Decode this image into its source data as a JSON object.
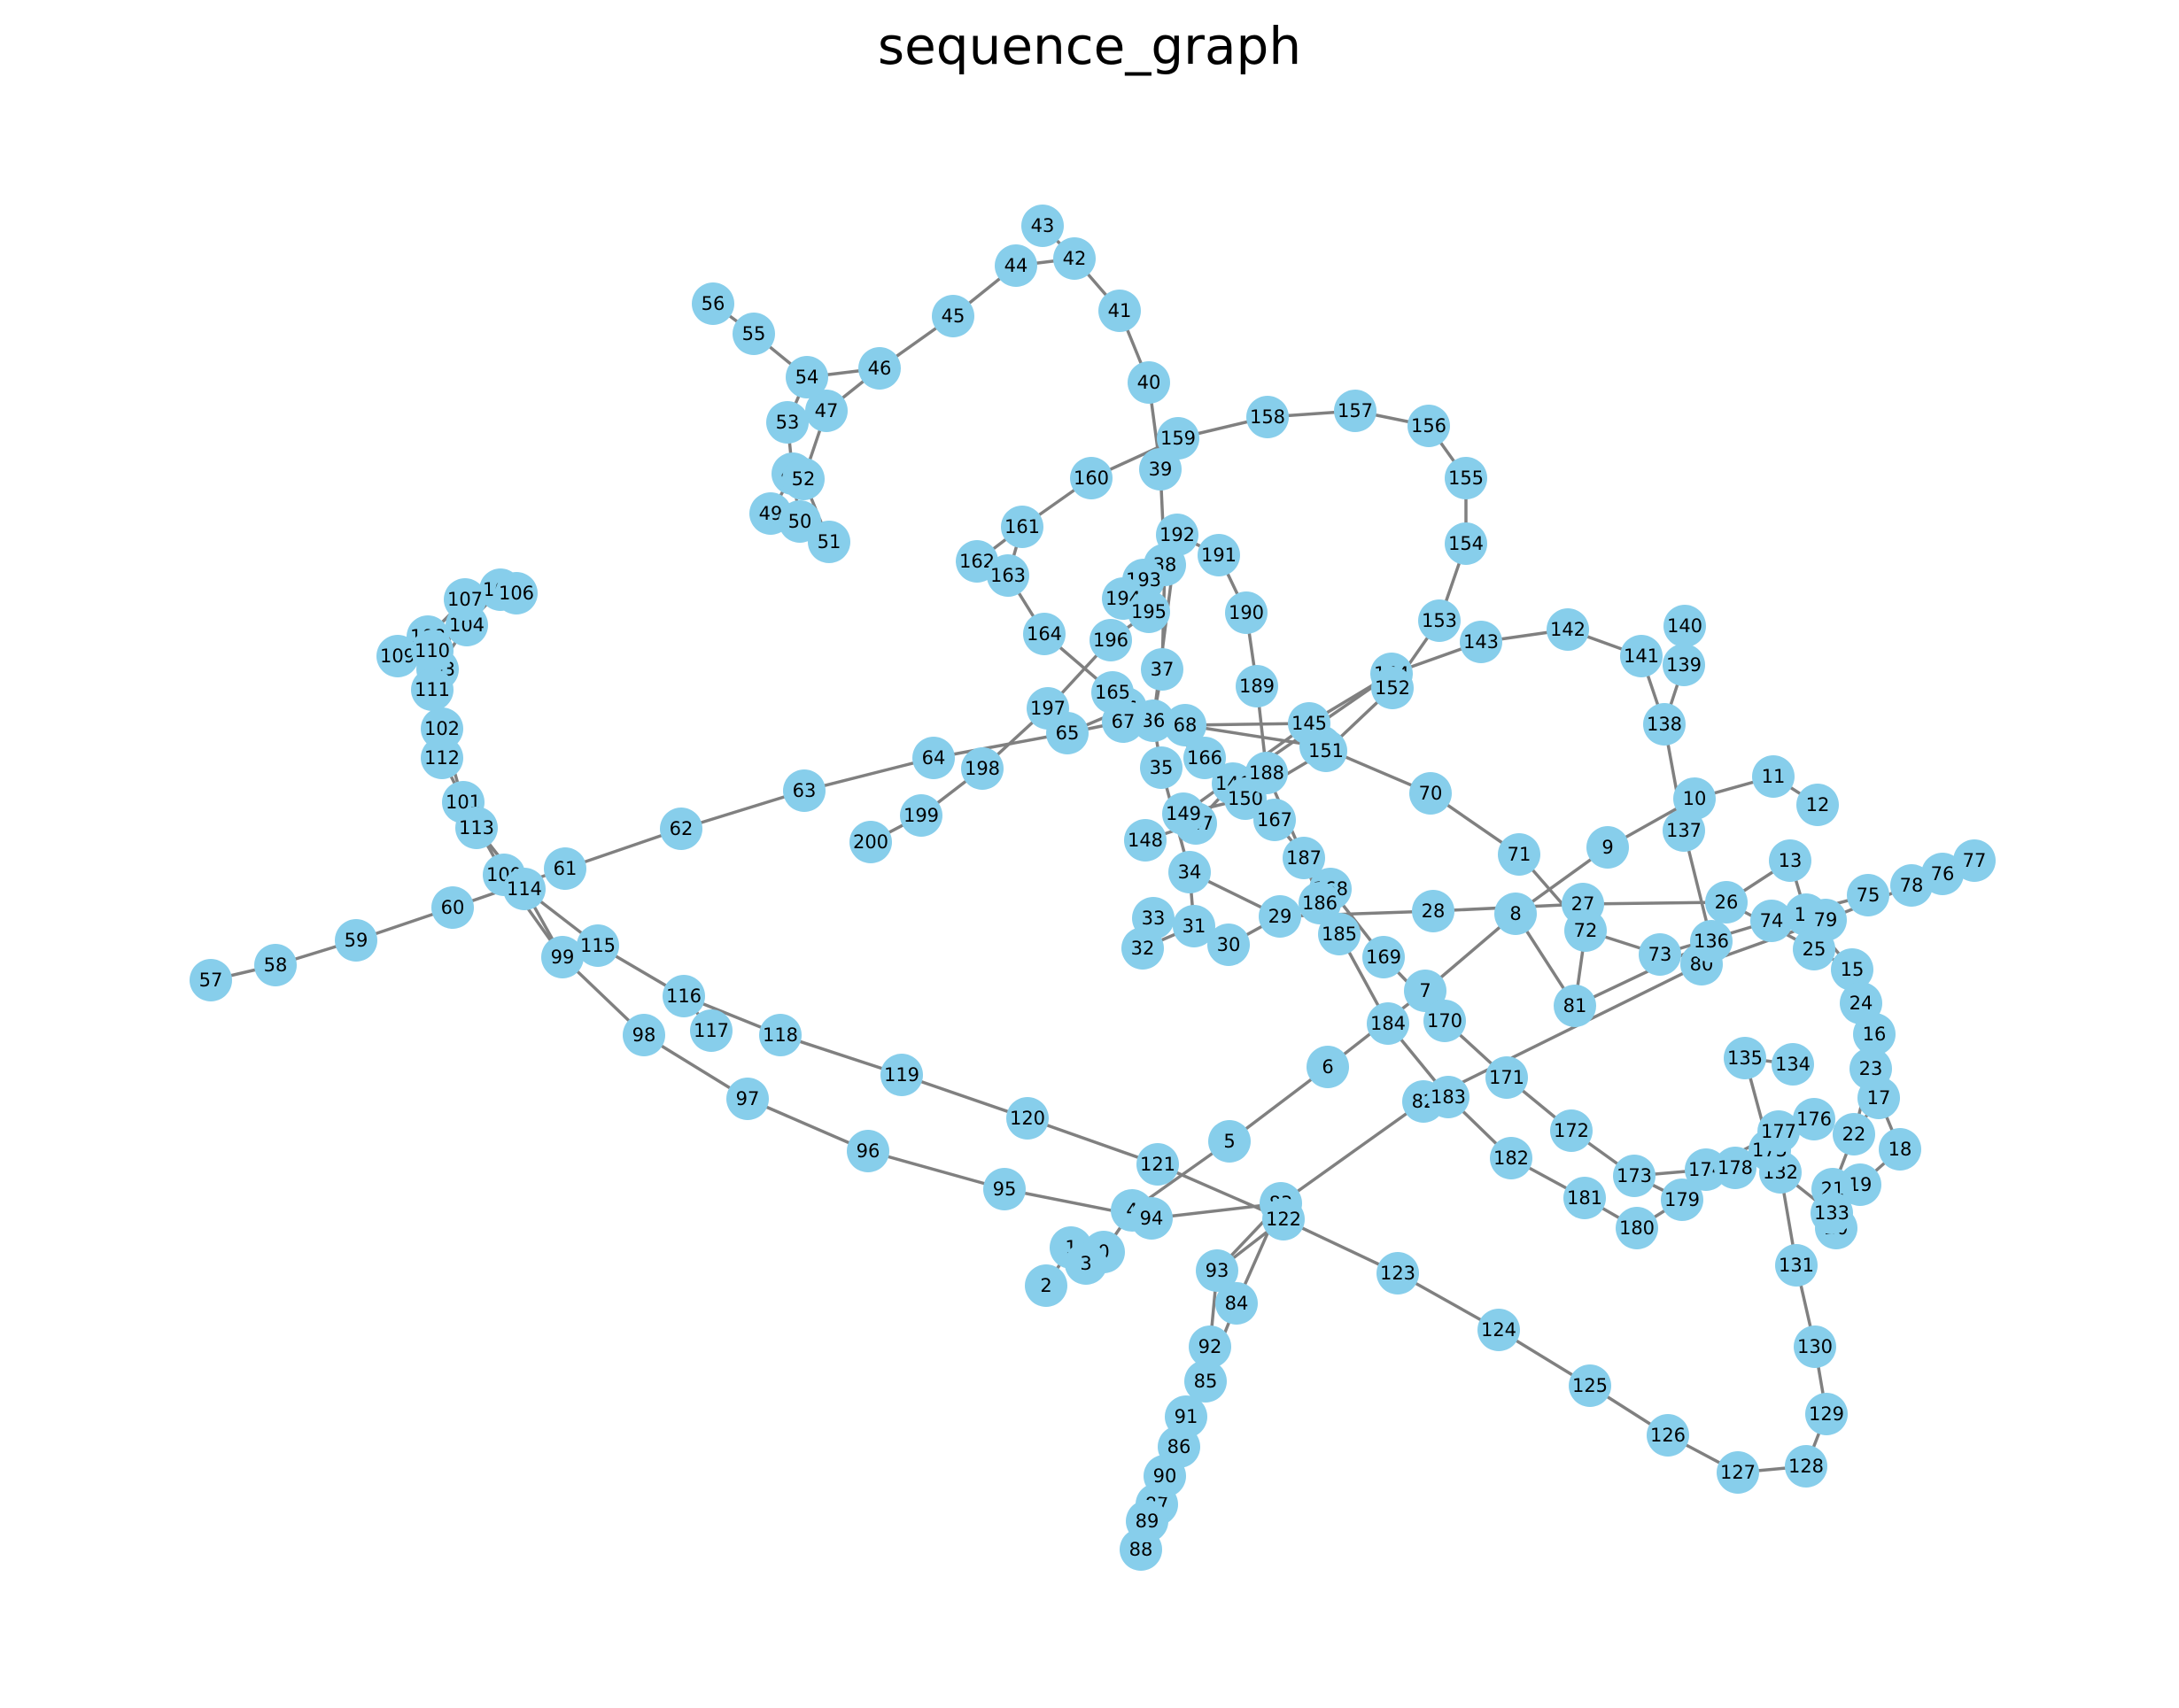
{
  "title": "sequence_graph",
  "colors": {
    "node": "#87CEEB",
    "edge": "#808080",
    "label": "#000000",
    "background": "#ffffff"
  },
  "graph": {
    "nodes": [
      "0",
      "1",
      "2",
      "3",
      "4",
      "5",
      "6",
      "7",
      "8",
      "9",
      "10",
      "11",
      "12",
      "13",
      "14",
      "15",
      "16",
      "17",
      "18",
      "19",
      "20",
      "21",
      "22",
      "23",
      "24",
      "25",
      "26",
      "27",
      "28",
      "29",
      "30",
      "31",
      "32",
      "33",
      "34",
      "35",
      "36",
      "37",
      "38",
      "39",
      "40",
      "41",
      "42",
      "43",
      "44",
      "45",
      "46",
      "47",
      "48",
      "49",
      "50",
      "51",
      "52",
      "53",
      "54",
      "55",
      "56",
      "57",
      "58",
      "59",
      "60",
      "61",
      "62",
      "63",
      "64",
      "65",
      "66",
      "67",
      "68",
      "69",
      "70",
      "71",
      "72",
      "73",
      "74",
      "75",
      "76",
      "77",
      "78",
      "79",
      "80",
      "81",
      "82",
      "83",
      "84",
      "85",
      "86",
      "87",
      "88",
      "89",
      "90",
      "91",
      "92",
      "93",
      "94",
      "95",
      "96",
      "97",
      "98",
      "99",
      "100",
      "101",
      "102",
      "103",
      "104",
      "105",
      "106",
      "107",
      "108",
      "109",
      "110",
      "111",
      "112",
      "113",
      "114",
      "115",
      "116",
      "117",
      "118",
      "119",
      "120",
      "121",
      "122",
      "123",
      "124",
      "125",
      "126",
      "127",
      "128",
      "129",
      "130",
      "131",
      "132",
      "133",
      "134",
      "135",
      "136",
      "137",
      "138",
      "139",
      "140",
      "141",
      "142",
      "143",
      "144",
      "145",
      "146",
      "147",
      "148",
      "149",
      "150",
      "151",
      "152",
      "153",
      "154",
      "155",
      "156",
      "157",
      "158",
      "159",
      "160",
      "161",
      "162",
      "163",
      "164",
      "165",
      "166",
      "167",
      "168",
      "169",
      "170",
      "171",
      "172",
      "173",
      "174",
      "175",
      "176",
      "177",
      "178",
      "179",
      "180",
      "181",
      "182",
      "183",
      "184",
      "185",
      "186",
      "187",
      "188",
      "189",
      "190",
      "191",
      "192",
      "193",
      "194",
      "195",
      "196",
      "197",
      "198",
      "199",
      "200"
    ],
    "edges": [
      [
        "0",
        "1"
      ],
      [
        "1",
        "2"
      ],
      [
        "0",
        "3"
      ],
      [
        "0",
        "4"
      ],
      [
        "4",
        "5"
      ],
      [
        "5",
        "6"
      ],
      [
        "6",
        "7"
      ],
      [
        "7",
        "8"
      ],
      [
        "8",
        "9"
      ],
      [
        "9",
        "10"
      ],
      [
        "10",
        "11"
      ],
      [
        "11",
        "12"
      ],
      [
        "13",
        "26"
      ],
      [
        "13",
        "14"
      ],
      [
        "14",
        "15"
      ],
      [
        "15",
        "24"
      ],
      [
        "24",
        "16"
      ],
      [
        "16",
        "23"
      ],
      [
        "23",
        "22"
      ],
      [
        "22",
        "21"
      ],
      [
        "21",
        "20"
      ],
      [
        "17",
        "18"
      ],
      [
        "18",
        "19"
      ],
      [
        "19",
        "21"
      ],
      [
        "17",
        "22"
      ],
      [
        "27",
        "28"
      ],
      [
        "28",
        "29"
      ],
      [
        "29",
        "30"
      ],
      [
        "29",
        "34"
      ],
      [
        "34",
        "31"
      ],
      [
        "31",
        "32"
      ],
      [
        "31",
        "33"
      ],
      [
        "34",
        "35"
      ],
      [
        "35",
        "36"
      ],
      [
        "36",
        "37"
      ],
      [
        "37",
        "38"
      ],
      [
        "38",
        "39"
      ],
      [
        "39",
        "40"
      ],
      [
        "40",
        "41"
      ],
      [
        "41",
        "42"
      ],
      [
        "42",
        "43"
      ],
      [
        "42",
        "44"
      ],
      [
        "44",
        "45"
      ],
      [
        "45",
        "46"
      ],
      [
        "46",
        "54"
      ],
      [
        "46",
        "47"
      ],
      [
        "47",
        "52"
      ],
      [
        "52",
        "51"
      ],
      [
        "54",
        "55"
      ],
      [
        "55",
        "56"
      ],
      [
        "54",
        "53"
      ],
      [
        "53",
        "48"
      ],
      [
        "48",
        "49"
      ],
      [
        "48",
        "50"
      ],
      [
        "62",
        "63"
      ],
      [
        "63",
        "64"
      ],
      [
        "64",
        "65"
      ],
      [
        "65",
        "66"
      ],
      [
        "65",
        "67"
      ],
      [
        "67",
        "68"
      ],
      [
        "68",
        "69"
      ],
      [
        "69",
        "70"
      ],
      [
        "70",
        "71"
      ],
      [
        "71",
        "72"
      ],
      [
        "72",
        "73"
      ],
      [
        "73",
        "74"
      ],
      [
        "74",
        "79"
      ],
      [
        "79",
        "78"
      ],
      [
        "78",
        "76"
      ],
      [
        "76",
        "77"
      ],
      [
        "74",
        "75"
      ],
      [
        "72",
        "81"
      ],
      [
        "81",
        "136"
      ],
      [
        "136",
        "80"
      ],
      [
        "80",
        "82"
      ],
      [
        "82",
        "83"
      ],
      [
        "83",
        "84"
      ],
      [
        "84",
        "85"
      ],
      [
        "85",
        "86"
      ],
      [
        "86",
        "87"
      ],
      [
        "87",
        "88"
      ],
      [
        "83",
        "94"
      ],
      [
        "94",
        "95"
      ],
      [
        "95",
        "96"
      ],
      [
        "96",
        "97"
      ],
      [
        "97",
        "98"
      ],
      [
        "98",
        "99"
      ],
      [
        "99",
        "100"
      ],
      [
        "100",
        "101"
      ],
      [
        "101",
        "102"
      ],
      [
        "102",
        "103"
      ],
      [
        "103",
        "104"
      ],
      [
        "104",
        "105"
      ],
      [
        "105",
        "106"
      ],
      [
        "103",
        "107"
      ],
      [
        "107",
        "108"
      ],
      [
        "108",
        "109"
      ],
      [
        "109",
        "110"
      ],
      [
        "110",
        "111"
      ],
      [
        "111",
        "112"
      ],
      [
        "112",
        "113"
      ],
      [
        "113",
        "114"
      ],
      [
        "114",
        "115"
      ],
      [
        "115",
        "116"
      ],
      [
        "116",
        "117"
      ],
      [
        "116",
        "118"
      ],
      [
        "118",
        "119"
      ],
      [
        "119",
        "120"
      ],
      [
        "120",
        "121"
      ],
      [
        "121",
        "122"
      ],
      [
        "122",
        "123"
      ],
      [
        "123",
        "124"
      ],
      [
        "124",
        "125"
      ],
      [
        "125",
        "126"
      ],
      [
        "126",
        "127"
      ],
      [
        "127",
        "128"
      ],
      [
        "128",
        "129"
      ],
      [
        "129",
        "130"
      ],
      [
        "130",
        "131"
      ],
      [
        "131",
        "132"
      ],
      [
        "132",
        "133"
      ],
      [
        "132",
        "175"
      ],
      [
        "175",
        "135"
      ],
      [
        "135",
        "134"
      ],
      [
        "136",
        "137"
      ],
      [
        "137",
        "138"
      ],
      [
        "138",
        "139"
      ],
      [
        "139",
        "140"
      ],
      [
        "138",
        "141"
      ],
      [
        "141",
        "142"
      ],
      [
        "142",
        "143"
      ],
      [
        "143",
        "144"
      ],
      [
        "144",
        "145"
      ],
      [
        "144",
        "146"
      ],
      [
        "146",
        "147"
      ],
      [
        "147",
        "148"
      ],
      [
        "145",
        "149"
      ],
      [
        "149",
        "150"
      ],
      [
        "150",
        "151"
      ],
      [
        "151",
        "152"
      ],
      [
        "152",
        "153"
      ],
      [
        "153",
        "154"
      ],
      [
        "154",
        "155"
      ],
      [
        "155",
        "156"
      ],
      [
        "156",
        "157"
      ],
      [
        "157",
        "158"
      ],
      [
        "158",
        "159"
      ],
      [
        "159",
        "160"
      ],
      [
        "160",
        "161"
      ],
      [
        "161",
        "162"
      ],
      [
        "161",
        "163"
      ],
      [
        "163",
        "164"
      ],
      [
        "164",
        "165"
      ],
      [
        "165",
        "166"
      ],
      [
        "166",
        "167"
      ],
      [
        "167",
        "168"
      ],
      [
        "168",
        "169"
      ],
      [
        "169",
        "170"
      ],
      [
        "170",
        "171"
      ],
      [
        "171",
        "172"
      ],
      [
        "172",
        "173"
      ],
      [
        "173",
        "174"
      ],
      [
        "174",
        "178"
      ],
      [
        "173",
        "179"
      ],
      [
        "179",
        "180"
      ],
      [
        "180",
        "181"
      ],
      [
        "181",
        "182"
      ],
      [
        "182",
        "183"
      ],
      [
        "183",
        "184"
      ],
      [
        "184",
        "185"
      ],
      [
        "185",
        "186"
      ],
      [
        "186",
        "187"
      ],
      [
        "187",
        "188"
      ],
      [
        "188",
        "189"
      ],
      [
        "189",
        "190"
      ],
      [
        "190",
        "191"
      ],
      [
        "191",
        "192"
      ],
      [
        "192",
        "193"
      ],
      [
        "193",
        "194"
      ],
      [
        "194",
        "195"
      ],
      [
        "195",
        "196"
      ],
      [
        "196",
        "197"
      ],
      [
        "197",
        "198"
      ],
      [
        "198",
        "199"
      ],
      [
        "199",
        "200"
      ],
      [
        "57",
        "58"
      ],
      [
        "58",
        "59"
      ],
      [
        "59",
        "60"
      ],
      [
        "60",
        "61"
      ],
      [
        "61",
        "62"
      ],
      [
        "26",
        "27"
      ],
      [
        "26",
        "25"
      ],
      [
        "25",
        "15"
      ],
      [
        "8",
        "81"
      ],
      [
        "80",
        "79"
      ],
      [
        "93",
        "92"
      ],
      [
        "93",
        "122"
      ],
      [
        "92",
        "91"
      ],
      [
        "91",
        "90"
      ],
      [
        "90",
        "89"
      ],
      [
        "83",
        "93"
      ],
      [
        "176",
        "177"
      ],
      [
        "177",
        "174"
      ],
      [
        "113",
        "114"
      ],
      [
        "114",
        "99"
      ],
      [
        "68",
        "145"
      ],
      [
        "36",
        "192"
      ]
    ]
  }
}
